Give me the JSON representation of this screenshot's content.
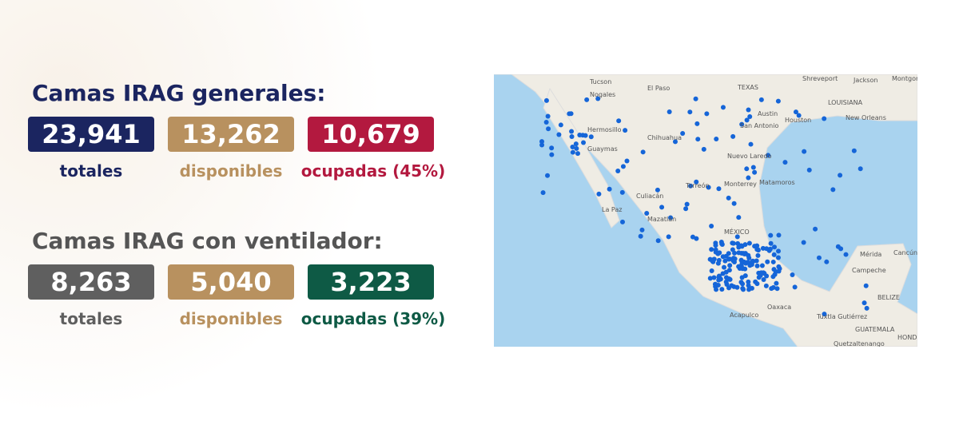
{
  "sections": [
    {
      "title": "Camas IRAG generales:",
      "stats": [
        {
          "value": "23,941",
          "label": "totales"
        },
        {
          "value": "13,262",
          "label": "disponibles"
        },
        {
          "value": "10,679",
          "label": "ocupadas (45%)"
        }
      ]
    },
    {
      "title": "Camas IRAG con ventilador:",
      "stats": [
        {
          "value": "8,263",
          "label": "totales"
        },
        {
          "value": "5,040",
          "label": "disponibles"
        },
        {
          "value": "3,223",
          "label": "ocupadas (39%)"
        }
      ]
    }
  ],
  "map": {
    "labels": [
      "Tucson",
      "El Paso",
      "Shreveport",
      "Jackson",
      "Montgor",
      "TEXAS",
      "LOUISIANA",
      "Austin",
      "Houston",
      "San Antonio",
      "New Orleans",
      "Nogales",
      "Hermosillo",
      "Chihuahua",
      "Guaymas",
      "Nuevo Laredo",
      "Monterrey",
      "Matamoros",
      "Torreón",
      "Culiacán",
      "La Paz",
      "Mazatlán",
      "MÉXICO",
      "Mérida",
      "Cancún",
      "Campeche",
      "Oaxaca",
      "Acapulco",
      "Tuxtla Gutiérrez",
      "BELIZE",
      "GUATEMALA",
      "HONDI",
      "Quetzaltenango"
    ]
  }
}
